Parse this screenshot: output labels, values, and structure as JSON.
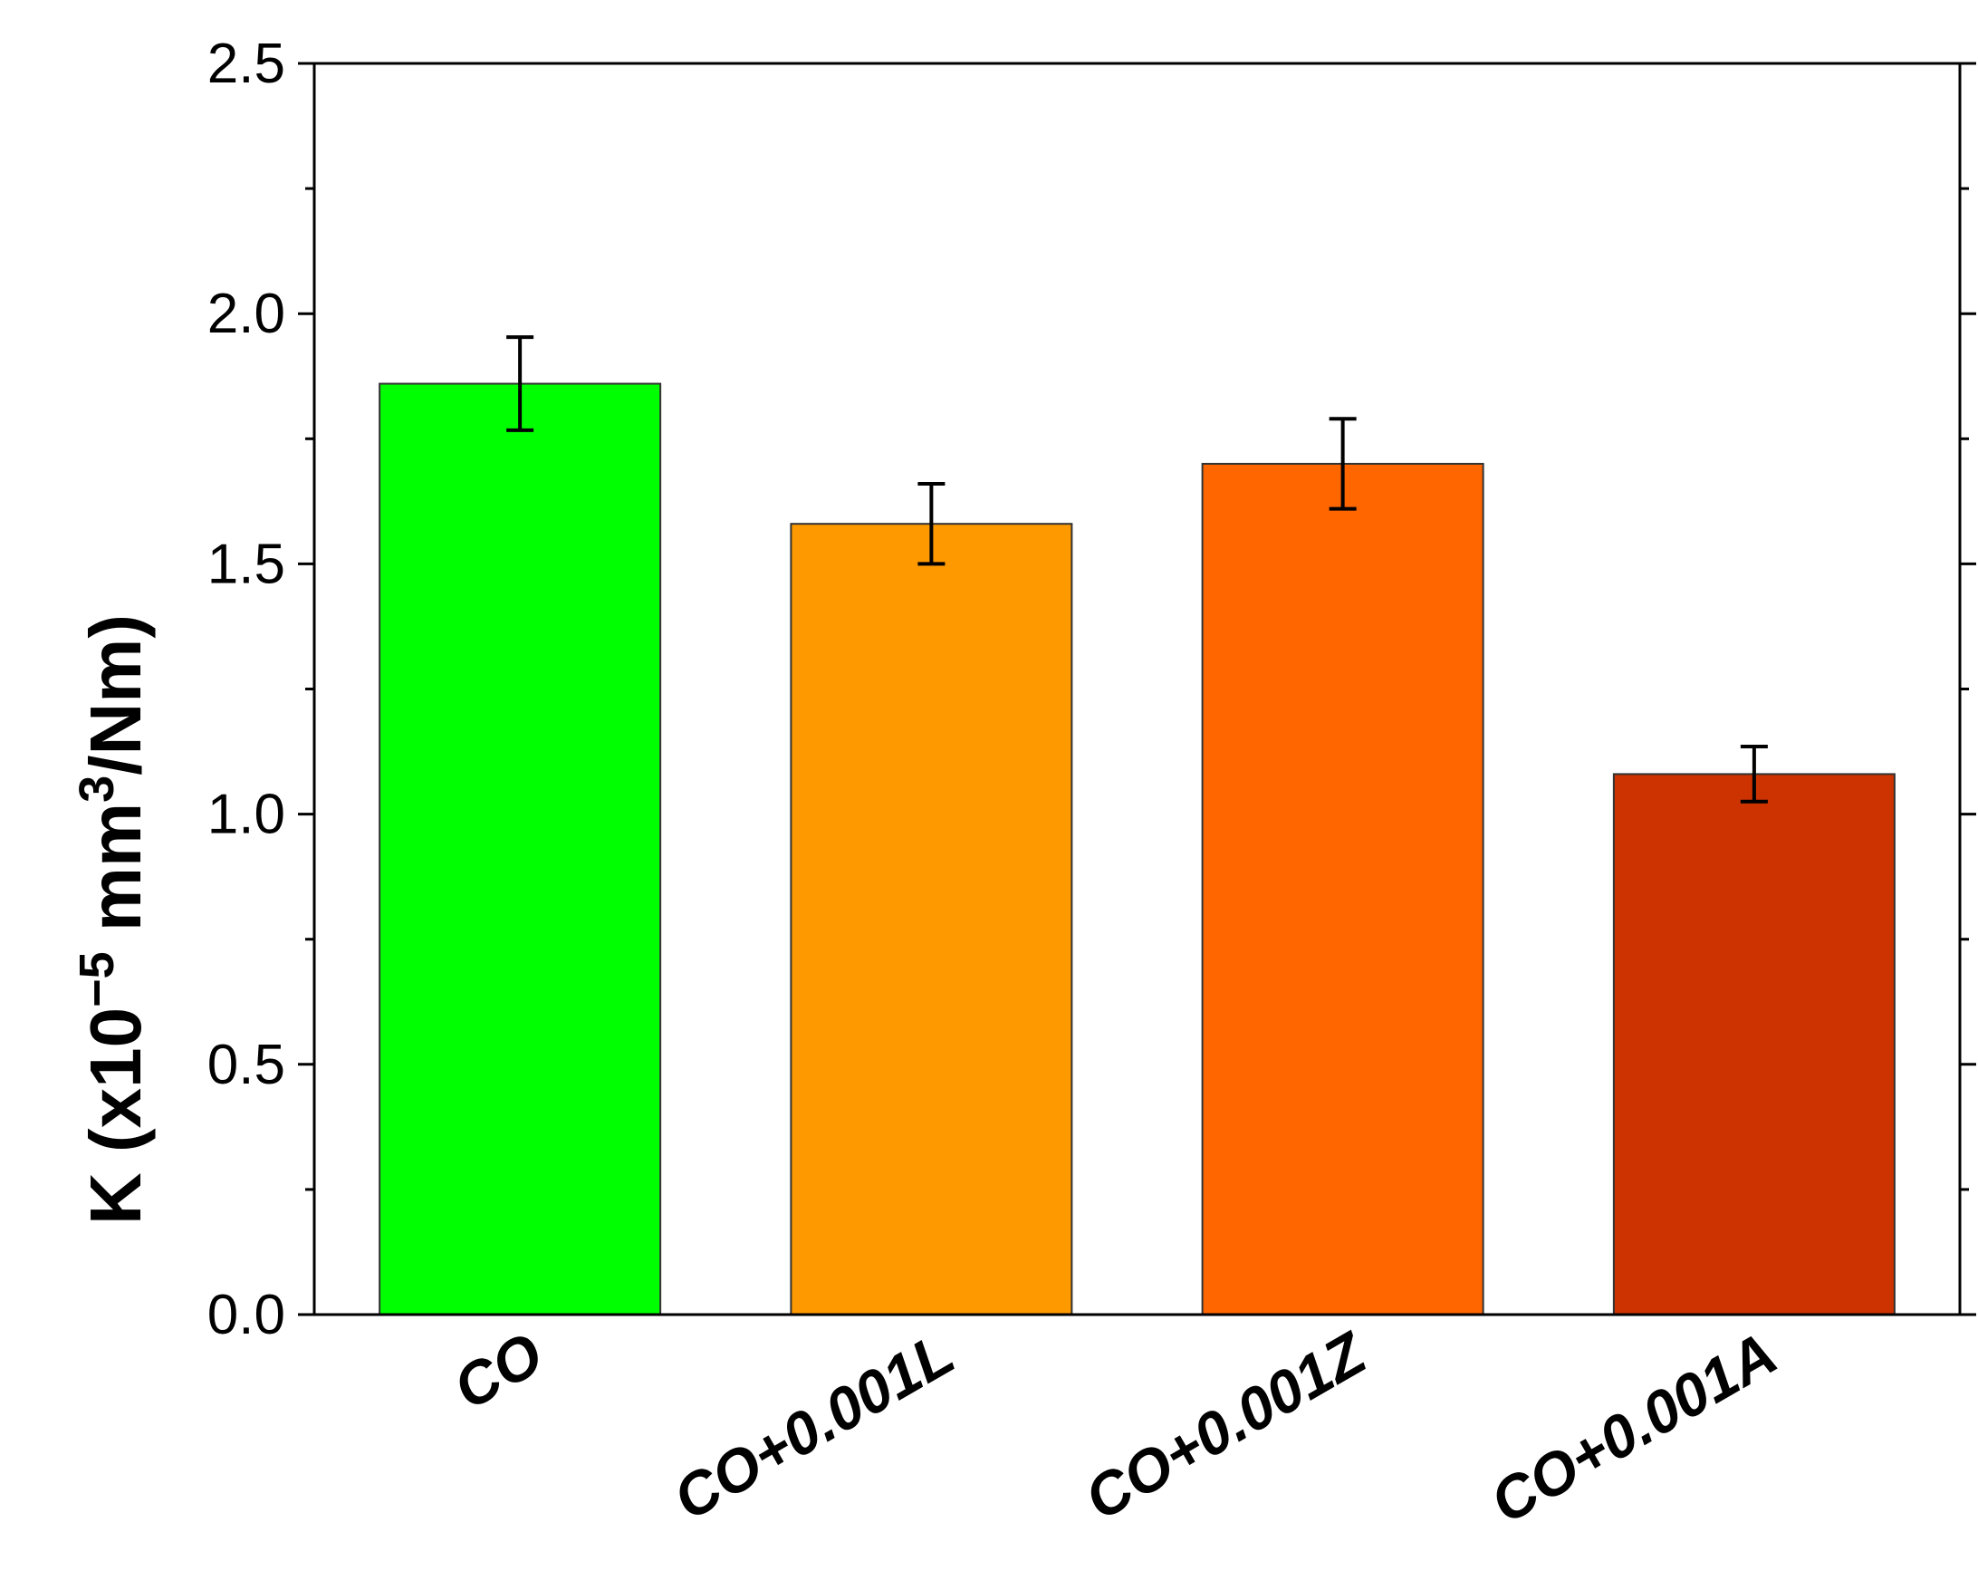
{
  "chart_data": {
    "type": "bar",
    "categories": [
      {
        "prefix": "CO",
        "suffix": ""
      },
      {
        "prefix": "CO+0.001",
        "suffix": "L"
      },
      {
        "prefix": "CO+0.001",
        "suffix": "Z"
      },
      {
        "prefix": "CO+0.001",
        "suffix": "A"
      }
    ],
    "values": [
      1.86,
      1.58,
      1.7,
      1.08
    ],
    "errors": [
      0.093,
      0.08,
      0.09,
      0.055
    ],
    "colors": [
      "#00FF00",
      "#FF9900",
      "#FF6600",
      "#CC3300"
    ],
    "ylim": [
      0,
      2.5
    ],
    "yticks": [
      "0.0",
      "0.5",
      "1.0",
      "1.5",
      "2.0",
      "2.5"
    ],
    "ytick_values": [
      0,
      0.5,
      1.0,
      1.5,
      2.0,
      2.5
    ],
    "yminor_ticks": [
      0.25,
      0.75,
      1.25,
      1.75,
      2.25
    ],
    "ylabel": {
      "main": "K (x10",
      "exp1": "−5",
      "mid": " mm",
      "exp2": "3",
      "tail": "/Nm)"
    },
    "xlabel": "",
    "title": "",
    "grid": false
  }
}
